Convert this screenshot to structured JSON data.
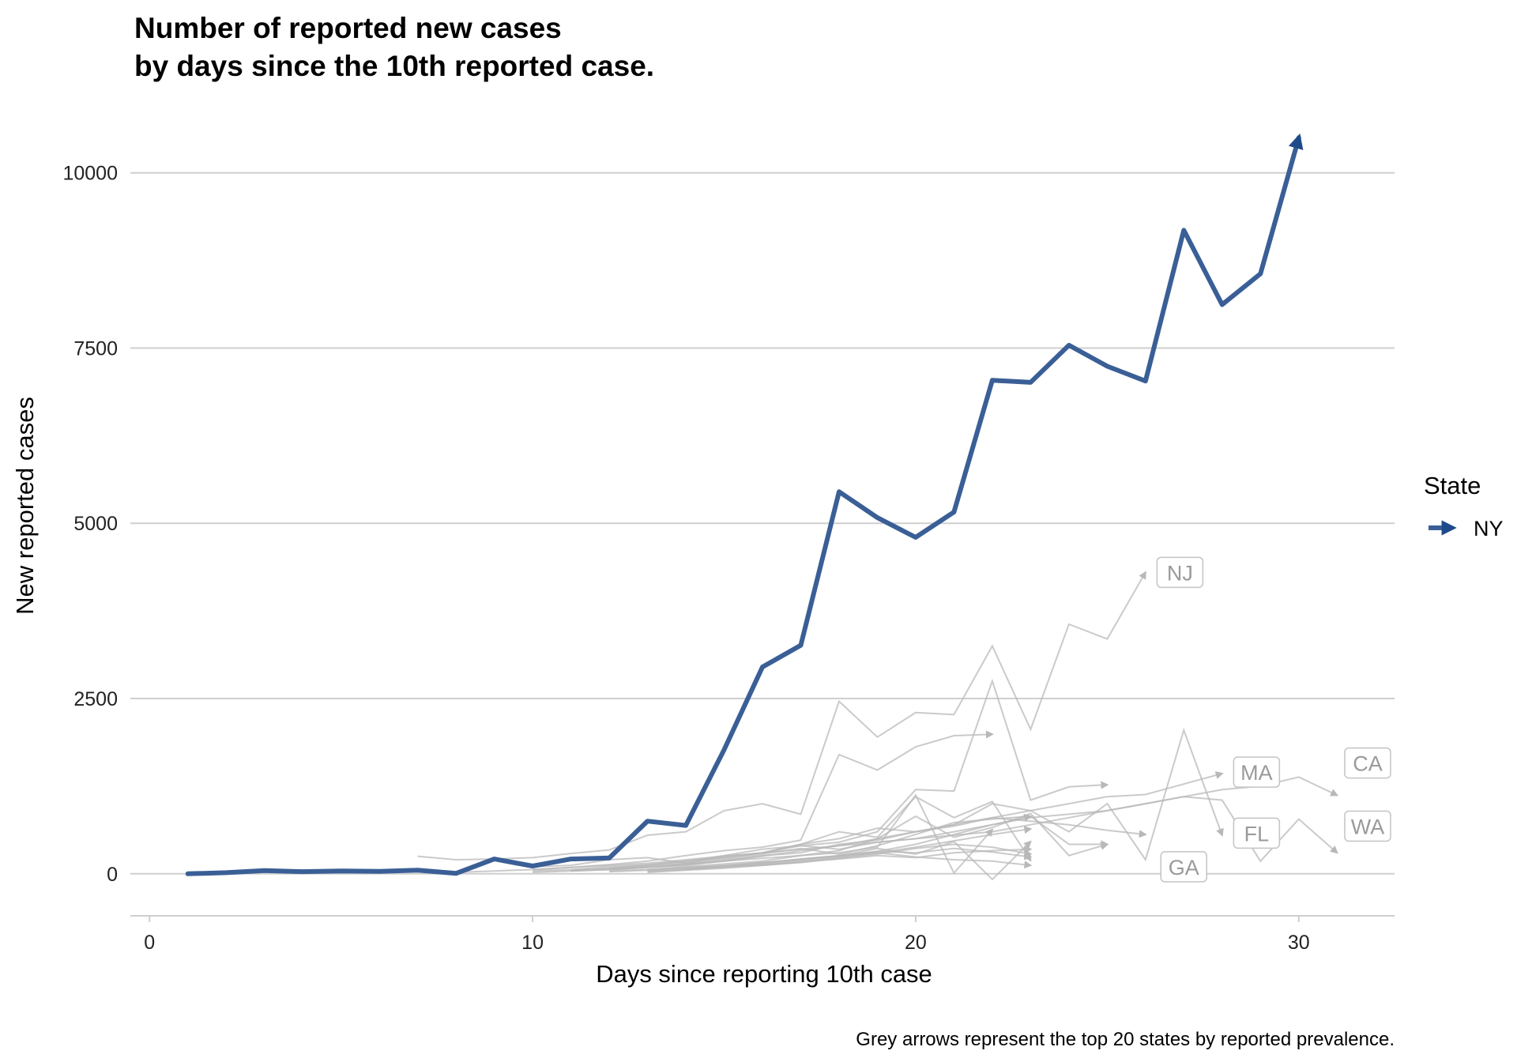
{
  "chart_data": {
    "type": "line",
    "title": [
      "Number of reported new cases",
      "by days since the 10th reported case."
    ],
    "xlabel": "Days since reporting 10th case",
    "ylabel": "New reported cases",
    "caption": "Grey arrows represent the top 20 states by reported prevalence.",
    "xlim": [
      -0.5,
      32.5
    ],
    "ylim": [
      -600,
      11000
    ],
    "x_ticks": [
      0,
      10,
      20,
      30
    ],
    "y_ticks": [
      0,
      2500,
      5000,
      7500,
      10000
    ],
    "grid": "horizontal",
    "legend": {
      "title": "State",
      "position": "right",
      "entries": [
        "NY"
      ]
    },
    "colors": {
      "highlight": "#3a5f96",
      "grey": "#b8b8b8",
      "gridline": "#cfcfcf"
    },
    "highlight_series": {
      "name": "NY",
      "x": [
        1,
        2,
        3,
        4,
        5,
        6,
        7,
        8,
        9,
        10,
        11,
        12,
        13,
        14,
        15,
        16,
        17,
        18,
        19,
        20,
        21,
        22,
        23,
        24,
        25,
        26,
        27,
        28,
        29,
        30
      ],
      "values": [
        0,
        15,
        45,
        30,
        40,
        35,
        50,
        5,
        210,
        110,
        210,
        225,
        750,
        690,
        1770,
        2950,
        3260,
        5450,
        5080,
        4800,
        5160,
        7040,
        7010,
        7540,
        7240,
        7030,
        9180,
        8120,
        8560,
        10500
      ]
    },
    "grey_series": [
      {
        "name": "NJ",
        "x": [
          7,
          8,
          9,
          10,
          11,
          12,
          13,
          14,
          15,
          16,
          17,
          18,
          19,
          20,
          21,
          22,
          23,
          24,
          25,
          26
        ],
        "values": [
          250,
          200,
          210,
          230,
          290,
          340,
          550,
          600,
          900,
          1000,
          850,
          2460,
          1950,
          2300,
          2270,
          3250,
          2060,
          3560,
          3350,
          4300
        ]
      },
      {
        "name": "CA",
        "x": [
          8,
          9,
          10,
          11,
          12,
          13,
          14,
          15,
          16,
          17,
          18,
          19,
          20,
          21,
          22,
          23,
          24,
          25,
          26,
          27,
          28,
          29,
          30,
          31
        ],
        "values": [
          20,
          40,
          60,
          90,
          120,
          150,
          200,
          250,
          300,
          350,
          400,
          450,
          500,
          600,
          700,
          800,
          850,
          900,
          1000,
          1100,
          1200,
          1250,
          1380,
          1120
        ]
      },
      {
        "name": "MA",
        "x": [
          10,
          11,
          12,
          13,
          14,
          15,
          16,
          17,
          18,
          19,
          20,
          21,
          22,
          23,
          24,
          25,
          26,
          27,
          28
        ],
        "values": [
          20,
          40,
          60,
          90,
          130,
          180,
          260,
          300,
          420,
          480,
          600,
          680,
          800,
          900,
          1000,
          1100,
          1130,
          1280,
          1430
        ]
      },
      {
        "name": "WA",
        "x": [
          10,
          11,
          12,
          13,
          14,
          15,
          16,
          17,
          18,
          19,
          20,
          21,
          22,
          23,
          24,
          25,
          26,
          27,
          28,
          29,
          30,
          31
        ],
        "values": [
          100,
          120,
          200,
          230,
          150,
          250,
          300,
          400,
          350,
          450,
          500,
          550,
          600,
          700,
          800,
          900,
          1000,
          1100,
          1050,
          180,
          780,
          300
        ]
      },
      {
        "name": "FL",
        "x": [
          10,
          11,
          12,
          13,
          14,
          15,
          16,
          17,
          18,
          19,
          20,
          21,
          22,
          23,
          24,
          25,
          26,
          27,
          28
        ],
        "values": [
          40,
          60,
          100,
          130,
          180,
          230,
          300,
          420,
          500,
          650,
          600,
          700,
          1000,
          900,
          600,
          1000,
          200,
          2050,
          550
        ]
      },
      {
        "name": "GA",
        "x": [
          11,
          12,
          13,
          14,
          15,
          16,
          17,
          18,
          19,
          20,
          21,
          22,
          23,
          24,
          25,
          26
        ],
        "values": [
          40,
          60,
          90,
          120,
          180,
          250,
          330,
          400,
          500,
          600,
          700,
          800,
          750,
          700,
          620,
          560
        ]
      },
      {
        "name": "",
        "x": [
          12,
          13,
          14,
          15,
          16,
          17,
          18,
          19,
          20,
          21,
          22,
          23,
          24,
          25
        ],
        "values": [
          80,
          120,
          180,
          260,
          350,
          400,
          450,
          600,
          1200,
          1180,
          2750,
          1050,
          1240,
          1270
        ]
      },
      {
        "name": "",
        "x": [
          10,
          11,
          12,
          13,
          14,
          15,
          16,
          17,
          18,
          19,
          20,
          21,
          22
        ],
        "values": [
          60,
          90,
          130,
          180,
          260,
          330,
          380,
          480,
          1700,
          1480,
          1810,
          1970,
          1990
        ]
      },
      {
        "name": "",
        "x": [
          11,
          12,
          13,
          14,
          15,
          16,
          17,
          18,
          19,
          20,
          21,
          22,
          23
        ],
        "values": [
          50,
          80,
          120,
          160,
          220,
          300,
          420,
          600,
          520,
          1100,
          800,
          1030,
          190
        ]
      },
      {
        "name": "",
        "x": [
          12,
          13,
          14,
          15,
          16,
          17,
          18,
          19,
          20,
          21,
          22,
          23,
          24,
          25
        ],
        "values": [
          60,
          90,
          140,
          200,
          280,
          360,
          280,
          400,
          560,
          730,
          780,
          820,
          420,
          420
        ]
      },
      {
        "name": "",
        "x": [
          13,
          14,
          15,
          16,
          17,
          18,
          19,
          20,
          21,
          22,
          23,
          24,
          25
        ],
        "values": [
          60,
          100,
          140,
          180,
          260,
          330,
          500,
          820,
          520,
          660,
          860,
          260,
          420
        ]
      },
      {
        "name": "",
        "x": [
          12,
          13,
          14,
          15,
          16,
          17,
          18,
          19,
          20,
          21,
          22,
          23
        ],
        "values": [
          40,
          60,
          90,
          110,
          160,
          200,
          260,
          360,
          280,
          460,
          -80,
          460
        ]
      },
      {
        "name": "",
        "x": [
          13,
          14,
          15,
          16,
          17,
          18,
          19,
          20,
          21,
          22,
          23
        ],
        "values": [
          30,
          60,
          90,
          120,
          160,
          220,
          280,
          360,
          420,
          380,
          280
        ]
      },
      {
        "name": "",
        "x": [
          14,
          15,
          16,
          17,
          18,
          19,
          20,
          21,
          22,
          23
        ],
        "values": [
          80,
          120,
          160,
          210,
          250,
          320,
          300,
          360,
          310,
          240
        ]
      },
      {
        "name": "",
        "x": [
          13,
          14,
          15,
          16,
          17,
          18,
          19,
          20,
          21,
          22,
          23
        ],
        "values": [
          20,
          50,
          80,
          120,
          170,
          230,
          300,
          240,
          200,
          180,
          120
        ]
      },
      {
        "name": "",
        "x": [
          12,
          13,
          14,
          15,
          16,
          17,
          18,
          19,
          20,
          21,
          22,
          23
        ],
        "values": [
          30,
          50,
          80,
          110,
          130,
          170,
          210,
          260,
          230,
          300,
          330,
          350
        ]
      },
      {
        "name": "",
        "x": [
          11,
          12,
          13,
          14,
          15,
          16,
          17,
          18,
          19,
          20,
          21,
          22
        ],
        "values": [
          40,
          70,
          100,
          140,
          180,
          220,
          260,
          300,
          380,
          1120,
          10,
          630
        ]
      },
      {
        "name": "",
        "x": [
          13,
          14,
          15,
          16,
          17,
          18,
          19,
          20,
          21,
          22,
          23
        ],
        "values": [
          40,
          70,
          110,
          150,
          210,
          260,
          320,
          420,
          560,
          700,
          820
        ]
      },
      {
        "name": "",
        "x": [
          14,
          15,
          16,
          17,
          18,
          19,
          20,
          21,
          22,
          23
        ],
        "values": [
          60,
          100,
          140,
          190,
          250,
          300,
          380,
          470,
          560,
          640
        ]
      }
    ],
    "state_labels": [
      {
        "text": "NJ",
        "x": 26.3,
        "y": 4300
      },
      {
        "text": "MA",
        "x": 28.3,
        "y": 1450
      },
      {
        "text": "CA",
        "x": 31.2,
        "y": 1580
      },
      {
        "text": "FL",
        "x": 28.3,
        "y": 580
      },
      {
        "text": "WA",
        "x": 31.2,
        "y": 680
      },
      {
        "text": "GA",
        "x": 26.4,
        "y": 100
      }
    ]
  }
}
